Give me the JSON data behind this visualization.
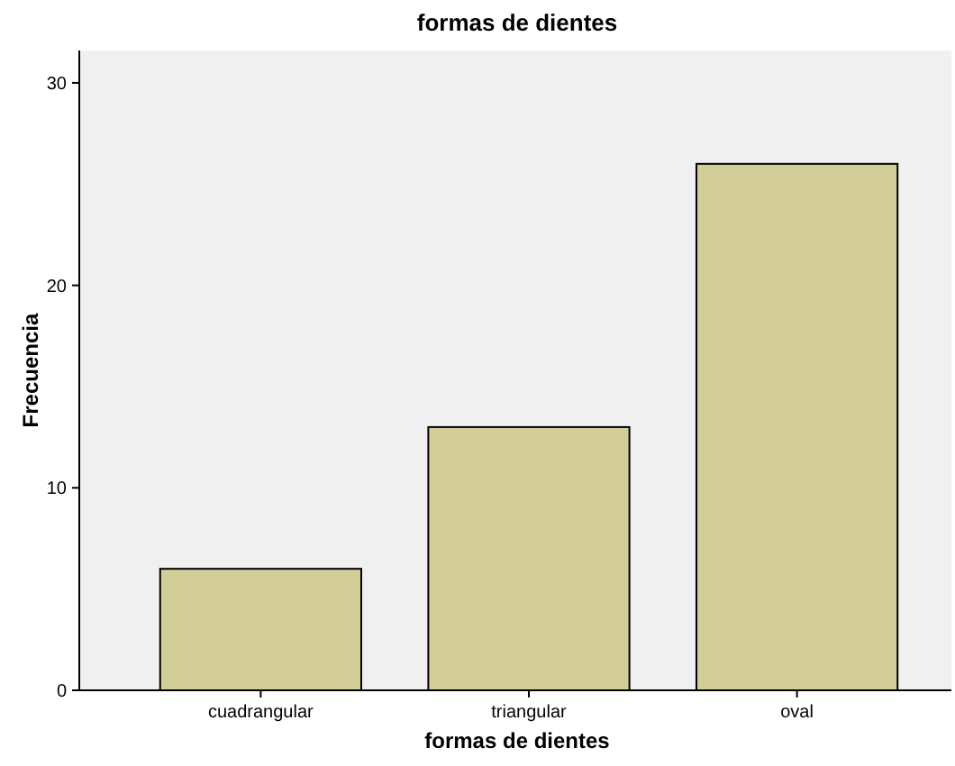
{
  "chart_data": {
    "type": "bar",
    "title": "formas de dientes",
    "xlabel": "formas de dientes",
    "ylabel": "Frecuencia",
    "categories": [
      "cuadrangular",
      "triangular",
      "oval"
    ],
    "values": [
      6,
      13,
      26
    ],
    "color": "#d3ce98",
    "ylim": [
      0,
      31.6
    ],
    "yticks": [
      0,
      10,
      20,
      30
    ],
    "grid": false
  }
}
